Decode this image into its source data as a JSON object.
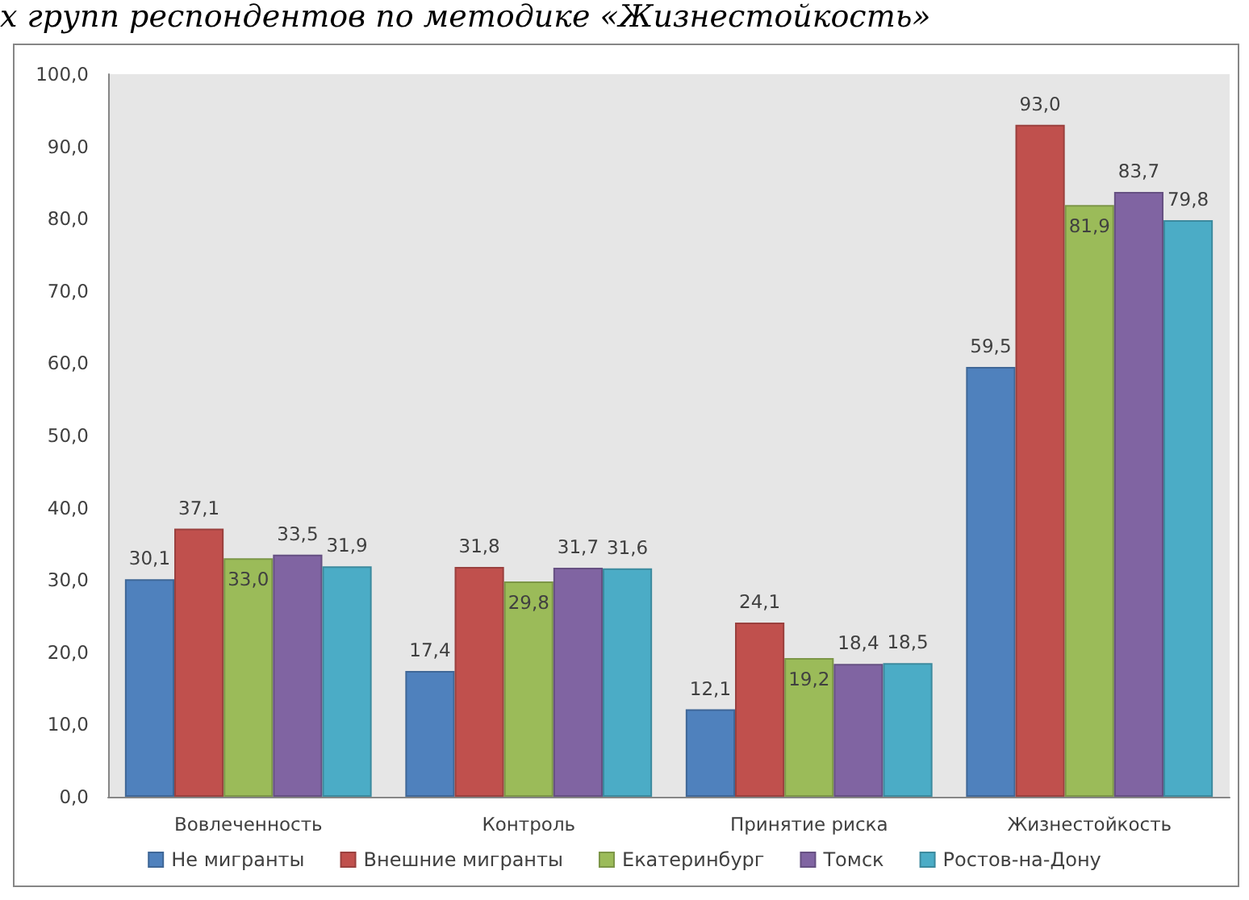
{
  "chart_data": {
    "type": "bar",
    "title": "х групп респондентов по методике «Жизнестойкость»",
    "categories": [
      "Вовлеченность",
      "Контроль",
      "Принятие риска",
      "Жизнестойкость"
    ],
    "series": [
      {
        "name": "Не мигранты",
        "color": "#4f81bd",
        "values": [
          30.1,
          17.4,
          12.1,
          59.5
        ],
        "value_labels": [
          "30,1",
          "17,4",
          "12,1",
          "59,5"
        ]
      },
      {
        "name": "Внешние мигранты",
        "color": "#c0504d",
        "values": [
          37.1,
          31.8,
          24.1,
          93.0
        ],
        "value_labels": [
          "37,1",
          "31,8",
          "24,1",
          "93,0"
        ]
      },
      {
        "name": "Екатеринбург",
        "color": "#9bbb59",
        "values": [
          33.0,
          29.8,
          19.2,
          81.9
        ],
        "value_labels": [
          "33,0",
          "29,8",
          "19,2",
          "81,9"
        ]
      },
      {
        "name": "Томск",
        "color": "#8064a2",
        "values": [
          33.5,
          31.7,
          18.4,
          83.7
        ],
        "value_labels": [
          "33,5",
          "31,7",
          "18,4",
          "83,7"
        ]
      },
      {
        "name": "Ростов-на-Дону",
        "color": "#4bacc6",
        "values": [
          31.9,
          31.6,
          18.5,
          79.8
        ],
        "value_labels": [
          "31,9",
          "31,6",
          "18,5",
          "79,8"
        ]
      }
    ],
    "ylim": [
      0,
      100
    ],
    "yticks": [
      {
        "value": 0,
        "label": "0,0"
      },
      {
        "value": 10,
        "label": "10,0"
      },
      {
        "value": 20,
        "label": "20,0"
      },
      {
        "value": 30,
        "label": "30,0"
      },
      {
        "value": 40,
        "label": "40,0"
      },
      {
        "value": 50,
        "label": "50,0"
      },
      {
        "value": 60,
        "label": "60,0"
      },
      {
        "value": 70,
        "label": "70,0"
      },
      {
        "value": 80,
        "label": "80,0"
      },
      {
        "value": 90,
        "label": "90,0"
      },
      {
        "value": 100,
        "label": "100,0"
      }
    ],
    "legend": "bottom"
  }
}
